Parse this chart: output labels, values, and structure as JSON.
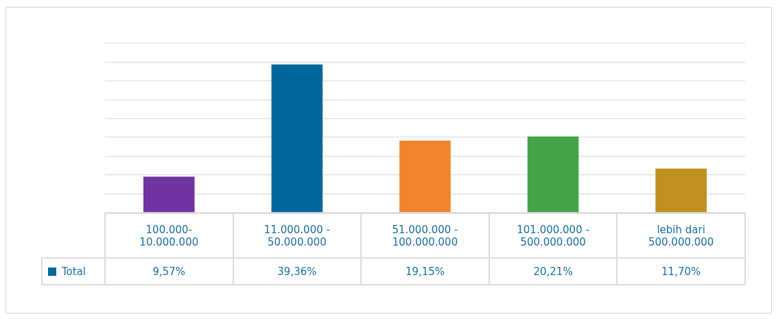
{
  "chart_data": {
    "type": "bar",
    "categories": [
      "100.000-10.000.000",
      "11.000.000 - 50.000.000",
      "51.000.000 - 100.000.000",
      "101.000.000 - 500.000.000",
      "lebih dari 500.000.000"
    ],
    "series": [
      {
        "name": "Total",
        "color": "#00679a",
        "colors": [
          "#7035a0",
          "#00679a",
          "#f0852d",
          "#43a447",
          "#bf8f1f"
        ],
        "values": [
          9.57,
          39.36,
          19.15,
          20.21,
          11.7
        ],
        "value_labels": [
          "9,57%",
          "39,36%",
          "19,15%",
          "20,21%",
          "11,70%"
        ]
      }
    ],
    "ylim": [
      0,
      45
    ],
    "yticks": [
      {
        "value": 0,
        "label": null
      },
      {
        "value": 5,
        "label": null
      },
      {
        "value": 10,
        "label": null
      },
      {
        "value": 15,
        "label": null
      },
      {
        "value": 20,
        "label": null
      },
      {
        "value": 25,
        "label": null
      },
      {
        "value": 30,
        "label": null
      },
      {
        "value": 35,
        "label": null
      },
      {
        "value": 40,
        "label": null
      },
      {
        "value": 45,
        "label": null
      }
    ],
    "grid": "y",
    "legend": "bottom left",
    "tick_labels": "x"
  }
}
